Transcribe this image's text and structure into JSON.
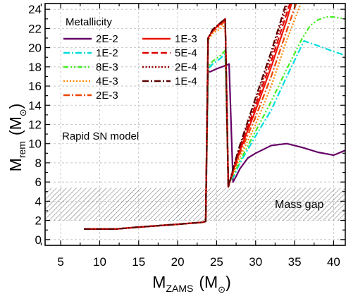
{
  "chart_data": {
    "type": "line",
    "xlabel_main": "M",
    "xlabel_sub": "ZAMS",
    "xlabel_unit": "(M",
    "xlabel_unit_sub": "⊙",
    "xlabel_close": ")",
    "ylabel_main": "M",
    "ylabel_sub": "rem",
    "ylabel_unit": "(M",
    "ylabel_unit_sub": "⊙",
    "ylabel_close": ")",
    "xlim": [
      3,
      41.5
    ],
    "ylim": [
      -0.6,
      24.6
    ],
    "xticks": [
      5,
      10,
      15,
      20,
      25,
      30,
      35,
      40
    ],
    "yticks": [
      0,
      2,
      4,
      6,
      8,
      10,
      12,
      14,
      16,
      18,
      20,
      22,
      24
    ],
    "grid": true,
    "legend_title": "Metallicity",
    "legend_placement": "top-left",
    "model_note": "Rapid SN model",
    "mass_gap": {
      "label": "Mass gap",
      "y_range": [
        2,
        5.4
      ]
    },
    "series": [
      {
        "name": "2E-2",
        "color": "#660066",
        "dash": "solid",
        "x": [
          8,
          12,
          15,
          20,
          23.2,
          23.6,
          23.9,
          24.2,
          25,
          26,
          26.6,
          27.1,
          27.5,
          28,
          29,
          30,
          32,
          34,
          36,
          38,
          40,
          41.5
        ],
        "y": [
          1.1,
          1.1,
          1.3,
          1.6,
          1.8,
          1.9,
          17.5,
          17.5,
          17.8,
          18.1,
          18.3,
          6.0,
          6.6,
          7.4,
          8.5,
          9.0,
          9.8,
          10.0,
          9.6,
          9.1,
          8.8,
          9.3
        ]
      },
      {
        "name": "1E-2",
        "color": "#00dddd",
        "dash": "dashdot",
        "x": [
          8,
          12,
          15,
          20,
          23.2,
          23.6,
          23.9,
          24.5,
          25.5,
          26.1,
          26.5,
          27.2,
          28,
          30,
          32,
          34,
          36.2,
          38,
          40,
          41.5
        ],
        "y": [
          1.1,
          1.1,
          1.3,
          1.6,
          1.8,
          1.9,
          17.8,
          18.3,
          18.9,
          19.4,
          5.9,
          6.6,
          8.0,
          10.8,
          13.5,
          17.0,
          20.7,
          20.2,
          19.6,
          19.2
        ]
      },
      {
        "name": "8E-3",
        "color": "#44ee22",
        "dash": "dashdotdot",
        "x": [
          8,
          12,
          15,
          20,
          23.2,
          23.6,
          23.9,
          24.5,
          25.5,
          26.1,
          26.5,
          27.2,
          28,
          30,
          32,
          34,
          36,
          37,
          38,
          39,
          40,
          41.5
        ],
        "y": [
          1.1,
          1.1,
          1.3,
          1.6,
          1.8,
          1.9,
          18.0,
          18.6,
          19.2,
          19.7,
          5.8,
          6.8,
          8.2,
          11.3,
          14.4,
          17.8,
          21.0,
          22.3,
          22.9,
          23.2,
          23.2,
          23.0
        ]
      },
      {
        "name": "4E-3",
        "color": "#ff8800",
        "dash": "dot",
        "x": [
          8,
          12,
          15,
          20,
          23.2,
          23.6,
          23.9,
          24.5,
          25.5,
          26.1,
          26.5,
          27.2,
          28,
          30,
          32,
          34,
          35.8
        ],
        "y": [
          1.1,
          1.1,
          1.3,
          1.6,
          1.8,
          1.9,
          20.8,
          21.5,
          22.0,
          22.4,
          5.7,
          7.0,
          8.6,
          12.0,
          16.0,
          20.8,
          24.6
        ]
      },
      {
        "name": "2E-3",
        "color": "#ee4400",
        "dash": "dashdot",
        "x": [
          8,
          12,
          15,
          20,
          23.2,
          23.6,
          23.9,
          24.5,
          25.5,
          26.1,
          26.5,
          27.2,
          28,
          30,
          32,
          34,
          35.2
        ],
        "y": [
          1.1,
          1.1,
          1.3,
          1.6,
          1.8,
          1.9,
          20.9,
          21.7,
          22.3,
          22.8,
          5.6,
          7.2,
          9.0,
          12.8,
          17.0,
          21.8,
          24.6
        ]
      },
      {
        "name": "1E-3",
        "color": "#ee1100",
        "dash": "solid",
        "x": [
          8,
          12,
          15,
          20,
          23.2,
          23.6,
          23.9,
          24.5,
          25.5,
          26.1,
          26.5,
          27.2,
          28,
          30,
          32,
          34,
          34.6
        ],
        "y": [
          1.1,
          1.1,
          1.3,
          1.6,
          1.8,
          1.9,
          21.0,
          21.8,
          22.5,
          23.0,
          5.5,
          7.4,
          9.3,
          13.5,
          18.0,
          22.9,
          24.6
        ]
      },
      {
        "name": "5E-4",
        "color": "#dd0000",
        "dash": "dash",
        "x": [
          8,
          12,
          15,
          20,
          23.2,
          23.6,
          23.9,
          24.5,
          25.5,
          26.1,
          26.5,
          27.2,
          28,
          30,
          32,
          34,
          34.4
        ],
        "y": [
          1.1,
          1.1,
          1.3,
          1.6,
          1.8,
          1.9,
          21.0,
          21.9,
          22.6,
          23.0,
          5.5,
          7.5,
          9.5,
          14.0,
          18.6,
          23.6,
          24.6
        ]
      },
      {
        "name": "2E-4",
        "color": "#990000",
        "dash": "dot",
        "x": [
          8,
          12,
          15,
          20,
          23.2,
          23.6,
          23.9,
          24.5,
          25.5,
          26.1,
          26.5,
          27.2,
          28,
          30,
          32,
          34.1
        ],
        "y": [
          1.1,
          1.1,
          1.3,
          1.6,
          1.8,
          1.9,
          21.0,
          21.9,
          22.6,
          23.0,
          5.5,
          7.6,
          9.7,
          14.5,
          19.2,
          24.6
        ]
      },
      {
        "name": "1E-4",
        "color": "#5a0000",
        "dash": "dashdot",
        "x": [
          8,
          12,
          15,
          20,
          23.2,
          23.6,
          23.9,
          24.5,
          25.5,
          26.1,
          26.5,
          27.2,
          28,
          30,
          32,
          33.9
        ],
        "y": [
          1.1,
          1.1,
          1.3,
          1.6,
          1.8,
          1.9,
          21.0,
          21.9,
          22.6,
          23.0,
          5.5,
          7.7,
          9.9,
          14.8,
          19.6,
          24.6
        ]
      }
    ]
  }
}
